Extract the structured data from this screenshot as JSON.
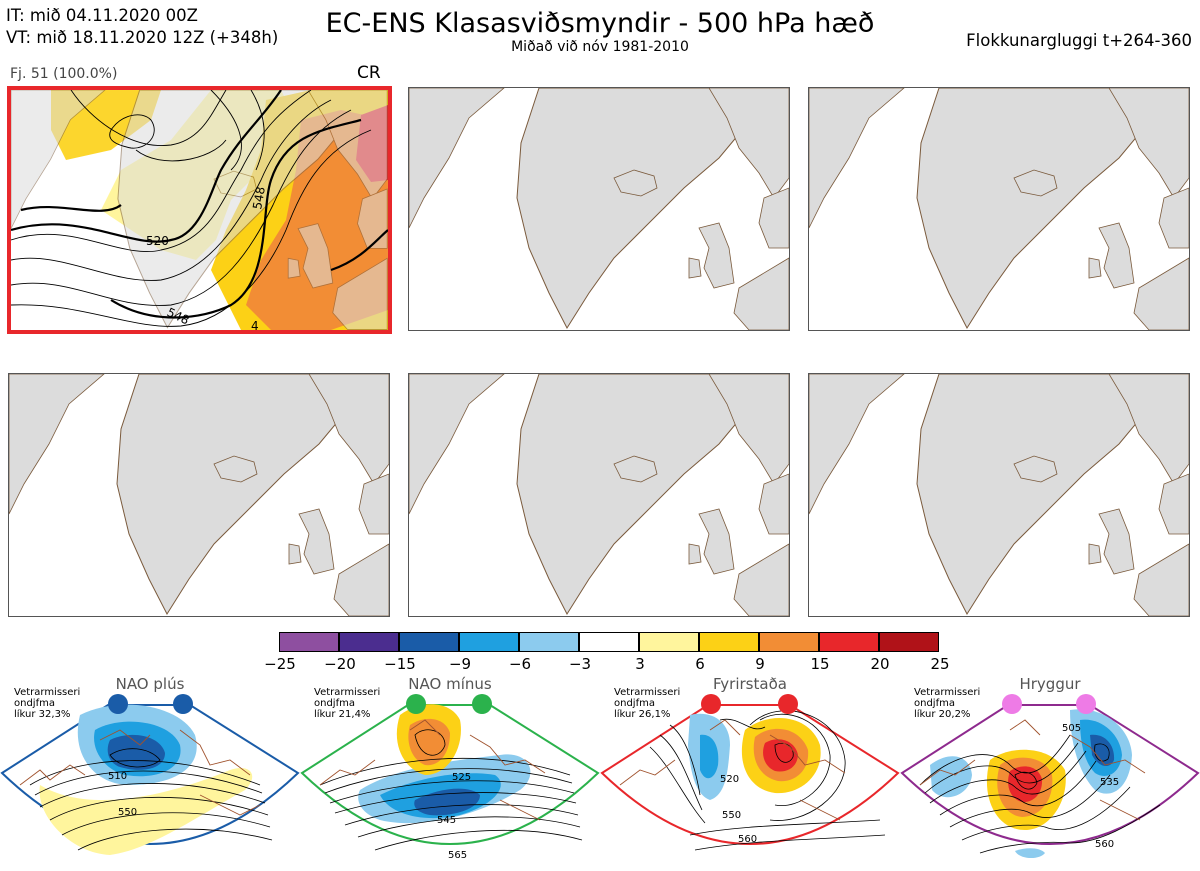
{
  "header": {
    "it_line": "IT: mið 04.11.2020 00Z",
    "vt_line": "VT: mið 18.11.2020 12Z  (+348h)",
    "title": "EC-ENS Klasasviðsmyndir - 500 hPa hæð",
    "subtitle": "Miðað við nóv 1981-2010",
    "window": "Flokkunargluggi t+264-360"
  },
  "cluster": {
    "member_text": "Fj. 51 (100.0%)",
    "regime_code": "CR",
    "contour_labels": [
      "520",
      "548",
      "548",
      "4"
    ]
  },
  "colorbar": {
    "ticks": [
      "−25",
      "−20",
      "−15",
      "−9",
      "−6",
      "−3",
      "3",
      "6",
      "9",
      "15",
      "20",
      "25"
    ],
    "colors": [
      "#8e4fa0",
      "#4b2d8f",
      "#1a5ca8",
      "#1fa0e0",
      "#8ccbee",
      "#ffffff",
      "#fff59d",
      "#fcd116",
      "#f28d35",
      "#e8272b",
      "#b01218"
    ]
  },
  "regimes": [
    {
      "name": "NAO plús",
      "prob_lines": [
        "Vetrarmisseri",
        "ondjfma",
        "líkur 32,3%"
      ],
      "color": "#1a5ca8",
      "contour_labels": [
        "510",
        "550"
      ]
    },
    {
      "name": "NAO mínus",
      "prob_lines": [
        "Vetrarmisseri",
        "ondjfma",
        "líkur 21,4%"
      ],
      "color": "#2bb24c",
      "contour_labels": [
        "525",
        "545",
        "565"
      ]
    },
    {
      "name": "Fyrirstaða",
      "prob_lines": [
        "Vetrarmisseri",
        "ondjfma",
        "líkur 26,1%"
      ],
      "color": "#e8272b",
      "contour_labels": [
        "520",
        "550",
        "560"
      ]
    },
    {
      "name": "Hryggur",
      "prob_lines": [
        "Vetrarmisseri",
        "ondjfma",
        "líkur 20,2%"
      ],
      "color": "#ee7be6",
      "contour_labels": [
        "505",
        "535",
        "560"
      ]
    }
  ]
}
